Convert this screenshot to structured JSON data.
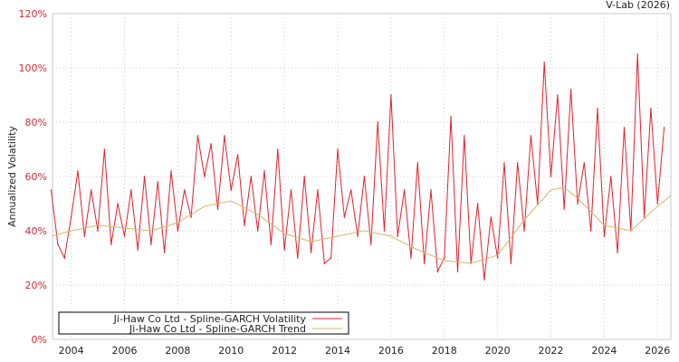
{
  "chart_data": {
    "type": "line",
    "source_label": "V-Lab (2026)",
    "ylabel": "Annualized Volatility",
    "xlabel": "",
    "xlim": [
      2003.3,
      2026.5
    ],
    "ylim": [
      0,
      120
    ],
    "y_ticks": [
      0,
      20,
      40,
      60,
      80,
      100,
      120
    ],
    "y_tick_labels": [
      "0%",
      "20%",
      "40%",
      "60%",
      "80%",
      "100%",
      "120%"
    ],
    "x_ticks": [
      2004,
      2006,
      2008,
      2010,
      2012,
      2014,
      2016,
      2018,
      2020,
      2022,
      2024,
      2026
    ],
    "x_tick_labels": [
      "2004",
      "2006",
      "2008",
      "2010",
      "2012",
      "2014",
      "2016",
      "2018",
      "2020",
      "2022",
      "2024",
      "2026"
    ],
    "grid": true,
    "legend_position": "bottom-left",
    "series": [
      {
        "name": "Ji-Haw Co Ltd - Spline-GARCH Volatility",
        "color": "#e0202c",
        "x_start": 2003.25,
        "x_step": 0.25,
        "values": [
          55,
          35,
          30,
          45,
          62,
          38,
          55,
          40,
          70,
          35,
          50,
          38,
          55,
          33,
          60,
          35,
          58,
          32,
          62,
          40,
          55,
          45,
          75,
          60,
          72,
          48,
          75,
          55,
          68,
          42,
          60,
          40,
          62,
          35,
          70,
          33,
          55,
          30,
          60,
          32,
          55,
          28,
          30,
          70,
          45,
          55,
          38,
          60,
          35,
          80,
          40,
          90,
          38,
          55,
          30,
          65,
          28,
          55,
          25,
          30,
          82,
          25,
          75,
          28,
          50,
          22,
          45,
          30,
          65,
          28,
          65,
          40,
          75,
          50,
          102,
          60,
          90,
          48,
          92,
          50,
          65,
          40,
          85,
          38,
          60,
          32,
          78,
          40,
          105,
          45,
          85,
          50,
          78
        ]
      },
      {
        "name": "Ji-Haw Co Ltd - Spline-GARCH Trend",
        "color": "#d4b86a",
        "x": [
          2003.3,
          2004,
          2005,
          2006,
          2007,
          2008,
          2009,
          2010,
          2011,
          2012,
          2013,
          2014,
          2015,
          2016,
          2017,
          2018,
          2019,
          2020,
          2021,
          2022,
          2022.5,
          2023,
          2024,
          2025,
          2026,
          2026.5
        ],
        "values": [
          38,
          40,
          42,
          41,
          40,
          43,
          49,
          51,
          46,
          39,
          36,
          38,
          40,
          38,
          33,
          29,
          28,
          31,
          44,
          55,
          56,
          52,
          42,
          40,
          49,
          53
        ]
      }
    ]
  }
}
